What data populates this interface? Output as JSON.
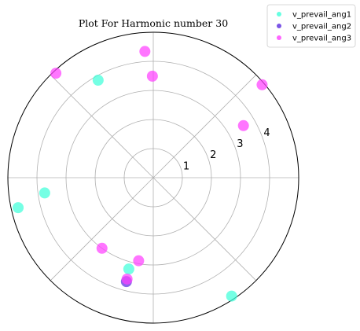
{
  "chart_data": {
    "type": "scatter",
    "projection": "polar",
    "title": "Plot For Harmonic number 30",
    "r_ticks": [
      1,
      2,
      3,
      4
    ],
    "rlim": [
      0,
      5
    ],
    "grid": true,
    "legend_placement": "top-right",
    "series": [
      {
        "name": "v_prevail_ang1",
        "color": "#40ffd9",
        "points": [
          {
            "theta_deg": 119.5,
            "r": 3.85
          },
          {
            "theta_deg": 188.0,
            "r": 3.77
          },
          {
            "theta_deg": 192.5,
            "r": 4.76
          },
          {
            "theta_deg": 255.0,
            "r": 3.25
          },
          {
            "theta_deg": 303.5,
            "r": 4.88
          }
        ]
      },
      {
        "name": "v_prevail_ang2",
        "color": "#5a2be0",
        "points": [
          {
            "theta_deg": 255.5,
            "r": 3.69
          }
        ]
      },
      {
        "name": "v_prevail_ang3",
        "color": "#ff40ff",
        "points": [
          {
            "theta_deg": 40.5,
            "r": 4.92
          },
          {
            "theta_deg": 30.0,
            "r": 3.58
          },
          {
            "theta_deg": 93.8,
            "r": 4.35
          },
          {
            "theta_deg": 90.5,
            "r": 3.49
          },
          {
            "theta_deg": 133.0,
            "r": 4.91
          },
          {
            "theta_deg": 234.0,
            "r": 3.0
          },
          {
            "theta_deg": 260.0,
            "r": 2.9
          },
          {
            "theta_deg": 255.5,
            "r": 3.6
          }
        ]
      }
    ]
  }
}
